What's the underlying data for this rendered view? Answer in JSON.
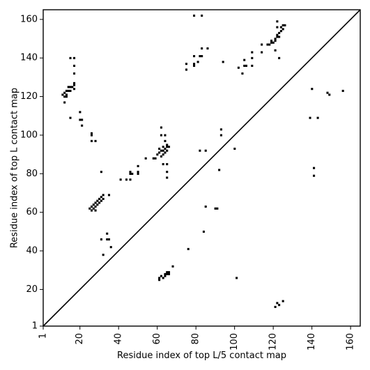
{
  "chart_data": {
    "type": "scatter",
    "xlabel": "Residue index of top L/5 contact map",
    "ylabel": "Residue index of top L contact map",
    "xlim": [
      1,
      165
    ],
    "ylim": [
      1,
      165
    ],
    "xticks": [
      1,
      20,
      40,
      60,
      80,
      100,
      120,
      140,
      160
    ],
    "yticks": [
      1,
      20,
      40,
      60,
      80,
      100,
      120,
      140,
      160
    ],
    "diagonal": true,
    "series": [
      {
        "marker": "square",
        "color": "#000000",
        "points": [
          [
            11,
            121
          ],
          [
            12,
            120
          ],
          [
            12,
            122
          ],
          [
            13,
            120
          ],
          [
            13,
            123
          ],
          [
            12,
            117
          ],
          [
            13,
            121
          ],
          [
            14,
            123
          ],
          [
            14,
            125
          ],
          [
            15,
            125
          ],
          [
            15,
            123
          ],
          [
            16,
            125
          ],
          [
            17,
            124
          ],
          [
            17,
            126
          ],
          [
            17,
            127
          ],
          [
            15,
            140
          ],
          [
            17,
            140
          ],
          [
            17,
            136
          ],
          [
            17,
            132
          ],
          [
            15,
            109
          ],
          [
            20,
            112
          ],
          [
            20,
            108
          ],
          [
            21,
            108
          ],
          [
            21,
            105
          ],
          [
            26,
            101
          ],
          [
            26,
            100
          ],
          [
            26,
            97
          ],
          [
            28,
            97
          ],
          [
            31,
            81
          ],
          [
            25,
            62
          ],
          [
            26,
            61
          ],
          [
            26,
            63
          ],
          [
            27,
            62
          ],
          [
            27,
            64
          ],
          [
            28,
            61
          ],
          [
            28,
            63
          ],
          [
            28,
            65
          ],
          [
            29,
            64
          ],
          [
            29,
            66
          ],
          [
            30,
            65
          ],
          [
            30,
            67
          ],
          [
            31,
            66
          ],
          [
            31,
            68
          ],
          [
            32,
            67
          ],
          [
            32,
            69
          ],
          [
            35,
            69
          ],
          [
            31,
            46
          ],
          [
            34,
            46
          ],
          [
            35,
            46
          ],
          [
            34,
            49
          ],
          [
            36,
            42
          ],
          [
            32,
            38
          ],
          [
            41,
            77
          ],
          [
            44,
            77
          ],
          [
            46,
            77
          ],
          [
            46,
            80
          ],
          [
            46,
            81
          ],
          [
            47,
            80
          ],
          [
            50,
            80
          ],
          [
            50,
            81
          ],
          [
            50,
            84
          ],
          [
            54,
            88
          ],
          [
            58,
            88
          ],
          [
            59,
            88
          ],
          [
            60,
            90
          ],
          [
            61,
            91
          ],
          [
            61,
            93
          ],
          [
            62,
            89
          ],
          [
            62,
            92
          ],
          [
            63,
            90
          ],
          [
            63,
            92
          ],
          [
            63,
            94
          ],
          [
            64,
            93
          ],
          [
            64,
            91
          ],
          [
            65,
            94
          ],
          [
            65,
            92
          ],
          [
            66,
            94
          ],
          [
            62,
            100
          ],
          [
            62,
            104
          ],
          [
            64,
            100
          ],
          [
            64,
            97
          ],
          [
            65,
            95
          ],
          [
            63,
            85
          ],
          [
            65,
            85
          ],
          [
            65,
            81
          ],
          [
            65,
            78
          ],
          [
            61,
            25
          ],
          [
            61,
            26
          ],
          [
            62,
            27
          ],
          [
            63,
            26
          ],
          [
            64,
            27
          ],
          [
            64,
            28
          ],
          [
            65,
            29
          ],
          [
            65,
            28
          ],
          [
            66,
            29
          ],
          [
            66,
            28
          ],
          [
            68,
            32
          ],
          [
            76,
            41
          ],
          [
            75,
            134
          ],
          [
            75,
            137
          ],
          [
            79,
            136
          ],
          [
            79,
            137
          ],
          [
            79,
            141
          ],
          [
            79,
            162
          ],
          [
            81,
            138
          ],
          [
            82,
            141
          ],
          [
            83,
            141
          ],
          [
            83,
            145
          ],
          [
            83,
            162
          ],
          [
            86,
            145
          ],
          [
            94,
            138
          ],
          [
            82,
            92
          ],
          [
            85,
            92
          ],
          [
            93,
            103
          ],
          [
            93,
            100
          ],
          [
            92,
            82
          ],
          [
            90,
            62
          ],
          [
            91,
            62
          ],
          [
            85,
            63
          ],
          [
            84,
            50
          ],
          [
            100,
            93
          ],
          [
            101,
            26
          ],
          [
            102,
            135
          ],
          [
            104,
            132
          ],
          [
            105,
            136
          ],
          [
            105,
            139
          ],
          [
            106,
            136
          ],
          [
            109,
            136
          ],
          [
            109,
            140
          ],
          [
            109,
            143
          ],
          [
            114,
            143
          ],
          [
            114,
            147
          ],
          [
            117,
            147
          ],
          [
            118,
            147
          ],
          [
            119,
            148
          ],
          [
            119,
            149
          ],
          [
            120,
            148
          ],
          [
            121,
            149
          ],
          [
            121,
            150
          ],
          [
            122,
            151
          ],
          [
            122,
            152
          ],
          [
            123,
            151
          ],
          [
            123,
            153
          ],
          [
            124,
            154
          ],
          [
            124,
            156
          ],
          [
            125,
            155
          ],
          [
            125,
            157
          ],
          [
            126,
            157
          ],
          [
            122,
            156
          ],
          [
            122,
            159
          ],
          [
            121,
            144
          ],
          [
            123,
            140
          ],
          [
            121,
            11
          ],
          [
            122,
            13
          ],
          [
            123,
            12
          ],
          [
            125,
            14
          ],
          [
            139,
            109
          ],
          [
            140,
            124
          ],
          [
            141,
            83
          ],
          [
            141,
            79
          ],
          [
            143,
            109
          ],
          [
            148,
            122
          ],
          [
            149,
            121
          ],
          [
            156,
            123
          ]
        ]
      }
    ]
  }
}
